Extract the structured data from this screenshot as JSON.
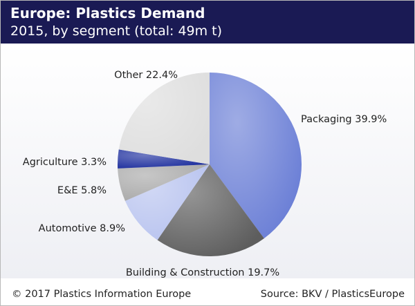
{
  "header": {
    "title": "Europe: Plastics Demand",
    "subtitle": "2015, by segment (total: 49m t)"
  },
  "footer": {
    "copyright": "© 2017 Plastics Information Europe",
    "source": "Source: BKV / PlasticsEurope"
  },
  "colors": {
    "header_bg": "#1a1a54",
    "packaging": "#6b7fd6",
    "building": "#5d5d5d",
    "automotive": "#b8c3ef",
    "ee": "#a9a9a9",
    "agriculture": "#1e2f9e",
    "other": "#dedede"
  },
  "chart_data": {
    "type": "pie",
    "title": "Europe: Plastics Demand",
    "subtitle": "2015, by segment (total: 49m t)",
    "unit": "%",
    "slices": [
      {
        "label": "Packaging",
        "value": 39.9,
        "display": "Packaging 39.9%",
        "color": "#6b7fd6"
      },
      {
        "label": "Building & Construction",
        "value": 19.7,
        "display": "Building & Construction 19.7%",
        "color": "#5d5d5d"
      },
      {
        "label": "Automotive",
        "value": 8.9,
        "display": "Automotive 8.9%",
        "color": "#b8c3ef"
      },
      {
        "label": "E&E",
        "value": 5.8,
        "display": "E&E 5.8%",
        "color": "#a9a9a9"
      },
      {
        "label": "Agriculture",
        "value": 3.3,
        "display": "Agriculture 3.3%",
        "color": "#1e2f9e"
      },
      {
        "label": "Other",
        "value": 22.4,
        "display": "Other 22.4%",
        "color": "#dedede"
      }
    ]
  }
}
